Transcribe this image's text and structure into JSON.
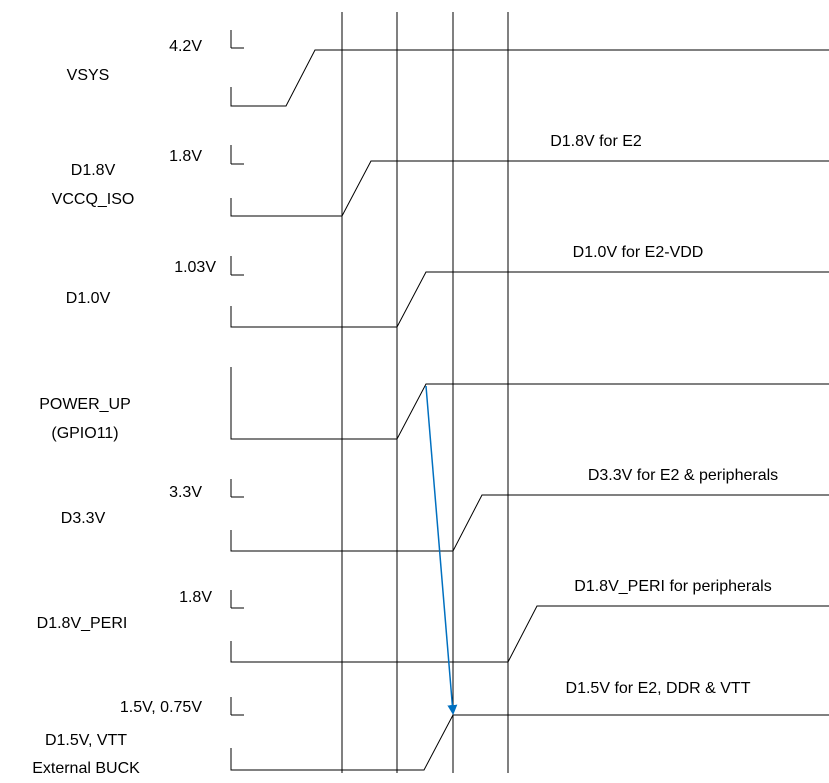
{
  "colors": {
    "line": "#000000",
    "arrow": "#0070c0"
  },
  "signals": [
    {
      "name_lines": [
        "VSYS"
      ],
      "level": "4.2V",
      "annotation": ""
    },
    {
      "name_lines": [
        "D1.8V",
        "VCCQ_ISO"
      ],
      "level": "1.8V",
      "annotation": "D1.8V for E2"
    },
    {
      "name_lines": [
        "D1.0V"
      ],
      "level": "1.03V",
      "annotation": "D1.0V for E2-VDD"
    },
    {
      "name_lines": [
        "POWER_UP",
        "(GPIO11)"
      ],
      "level": "",
      "annotation": ""
    },
    {
      "name_lines": [
        "D3.3V"
      ],
      "level": "3.3V",
      "annotation": "D3.3V for E2 & peripherals"
    },
    {
      "name_lines": [
        "D1.8V_PERI"
      ],
      "level": "1.8V",
      "annotation": "D1.8V_PERI for peripherals"
    },
    {
      "name_lines": [
        "D1.5V, VTT",
        "External BUCK"
      ],
      "level": "1.5V, 0.75V",
      "annotation": "D1.5V for E2, DDR & VTT"
    }
  ],
  "arrow": {
    "from_signal": "POWER_UP (GPIO11)",
    "to_signal": "D1.5V, VTT External BUCK"
  }
}
